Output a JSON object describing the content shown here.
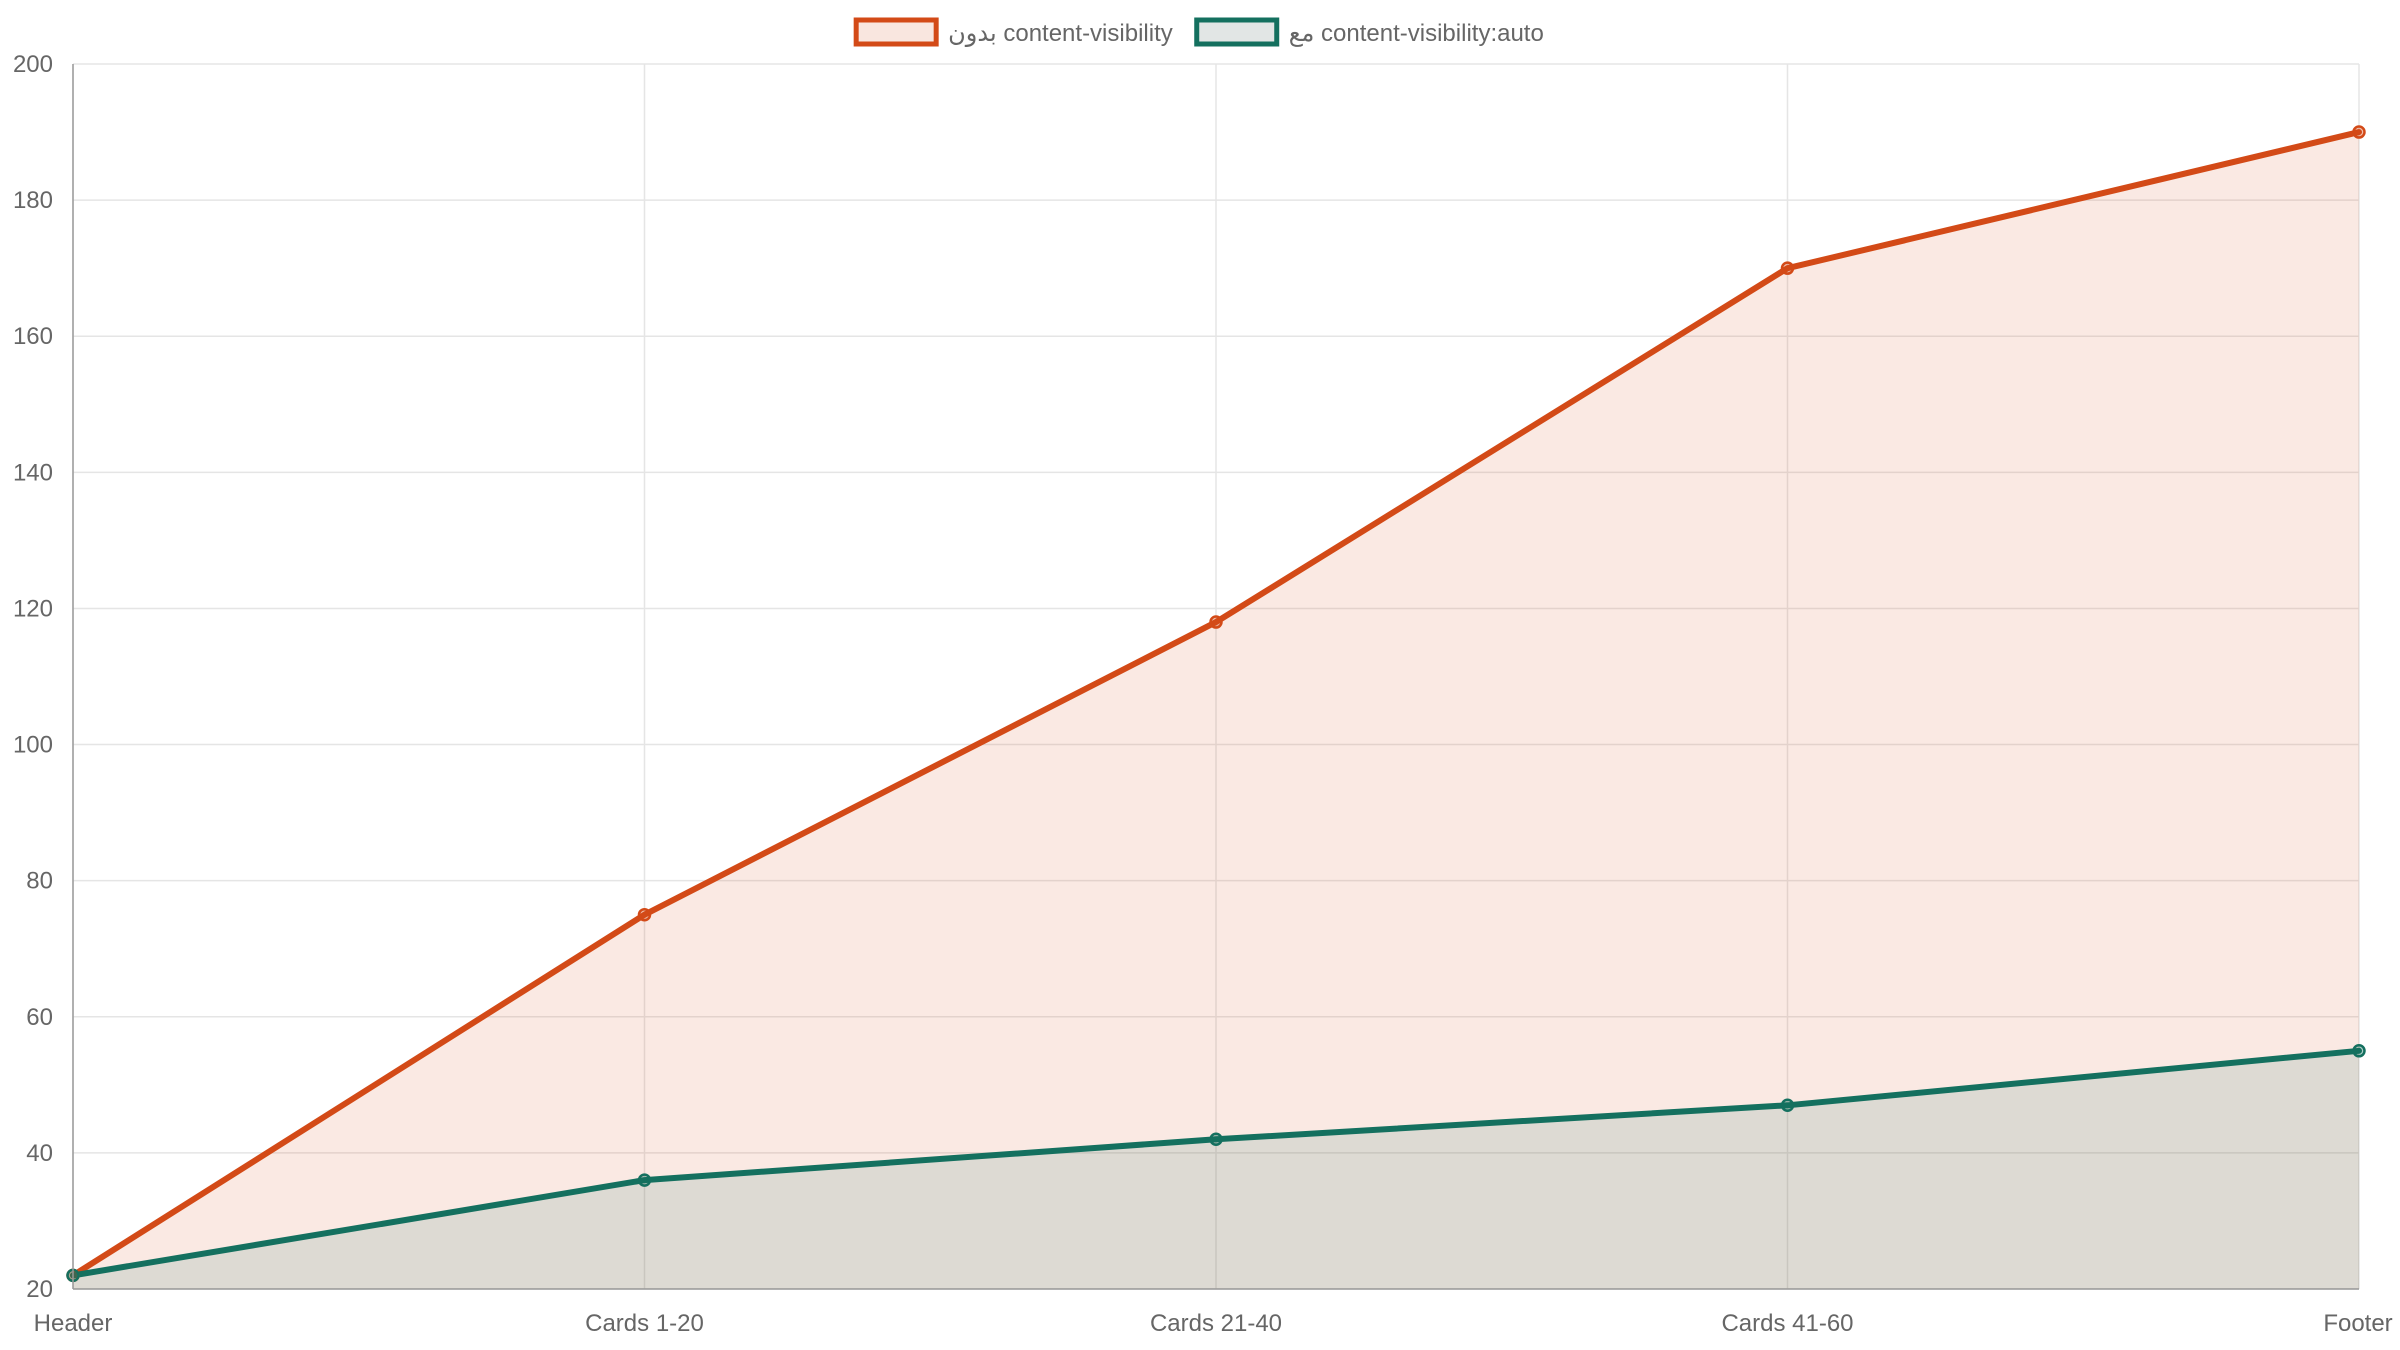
{
  "chart_data": {
    "type": "area",
    "categories": [
      "Header",
      "Cards 1-20",
      "Cards 21-40",
      "Cards 41-60",
      "Footer"
    ],
    "ylim": [
      20,
      200
    ],
    "y_ticks": [
      20,
      40,
      60,
      80,
      100,
      120,
      140,
      160,
      180,
      200
    ],
    "grid": true,
    "legend_position": "top-center",
    "series": [
      {
        "name": "بدون content-visibility",
        "values": [
          22,
          75,
          118,
          170,
          190
        ],
        "line_color": "#d34a17",
        "fill_color": "rgba(211,74,23,0.12)",
        "legend_fill": "#f9e6df"
      },
      {
        "name": "مع content-visibility:auto",
        "values": [
          22,
          36,
          42,
          47,
          55
        ],
        "line_color": "#14705f",
        "fill_color": "rgba(20,112,95,0.12)",
        "legend_fill": "#e2e6e5"
      }
    ]
  }
}
